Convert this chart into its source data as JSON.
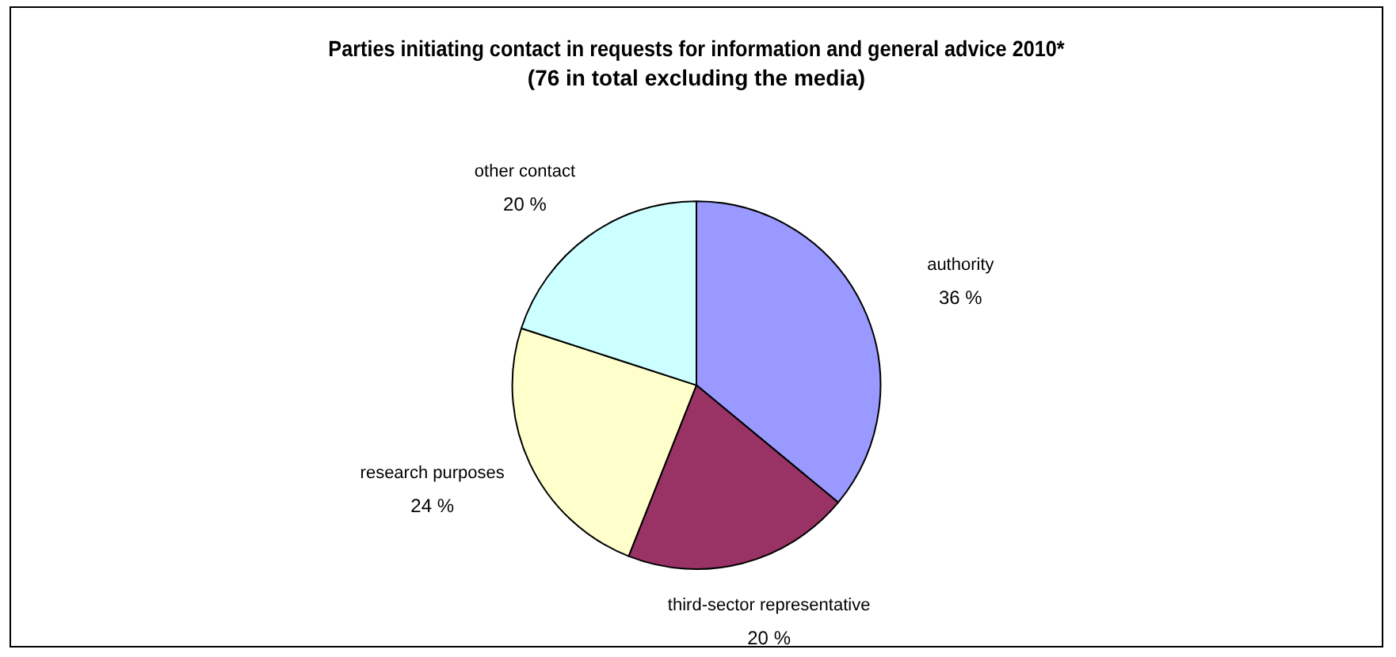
{
  "chart_data": {
    "type": "pie",
    "title": "Parties initiating contact in requests for information and general advice 2010*",
    "subtitle": "(76 in total excluding the media)",
    "categories": [
      "authority",
      "third-sector representative",
      "research purposes",
      "other contact"
    ],
    "values": [
      36,
      20,
      24,
      20
    ],
    "colors": [
      "#9999ff",
      "#993366",
      "#ffffcc",
      "#ccffff"
    ],
    "value_labels": [
      "36 %",
      "20 %",
      "24 %",
      "20 %"
    ],
    "legend": false
  }
}
